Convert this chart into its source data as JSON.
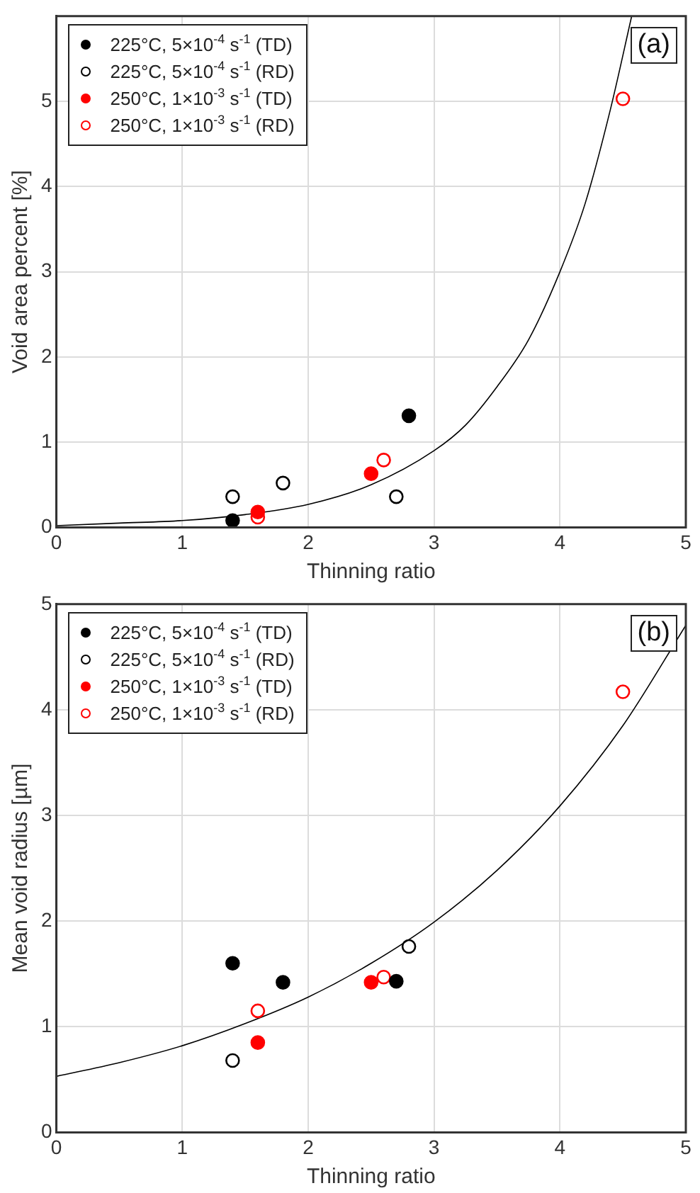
{
  "chart_data": [
    {
      "type": "scatter",
      "xlabel": "Thinning ratio",
      "ylabel": "Void area percent [%]",
      "annotations": [
        "(a)"
      ],
      "xlim": [
        0,
        5
      ],
      "xticks": [
        0,
        1,
        2,
        3,
        4,
        5
      ],
      "ylim": [
        0,
        6
      ],
      "yticks": [
        0,
        1,
        2,
        3,
        4,
        5
      ],
      "grid": true,
      "legend": "top left",
      "marker": "circle",
      "series": [
        {
          "name": "225°C, 5×10$^{-4}$ s$^{-1}$ (TD)",
          "color": "#000000",
          "x": [
            1.4,
            2.8
          ],
          "values": [
            0.08,
            1.31
          ]
        },
        {
          "name": "225°C, 5×10$^{-4}$ s$^{-1}$ (RD)",
          "color": "#000000",
          "x": [
            1.4,
            1.8,
            2.7
          ],
          "values": [
            0.36,
            0.52,
            0.36
          ]
        },
        {
          "name": "250°C, 1×10$^{-3}$ s$^{-1}$ (TD)",
          "color": "#ff0000",
          "x": [
            1.6,
            2.5
          ],
          "values": [
            0.18,
            0.63
          ]
        },
        {
          "name": "250°C, 1×10$^{-3}$ s$^{-1}$ (RD)",
          "color": "#ff0000",
          "x": [
            1.6,
            2.6,
            4.5
          ],
          "values": [
            0.12,
            0.79,
            5.03
          ]
        },
        {
          "type": "line",
          "color": "#000000",
          "marker": "none",
          "x": [
            0,
            0.5,
            1,
            1.5,
            2,
            2.5,
            3,
            3.25,
            3.5,
            3.75,
            4,
            4.2,
            4.4,
            4.57
          ],
          "values": [
            0.02,
            0.05,
            0.08,
            0.15,
            0.27,
            0.5,
            0.9,
            1.2,
            1.65,
            2.2,
            3.0,
            3.8,
            4.9,
            6.0
          ]
        }
      ]
    },
    {
      "type": "scatter",
      "xlabel": "Thinning ratio",
      "ylabel": "Mean void radius [µm]",
      "annotations": [
        "(b)"
      ],
      "xlim": [
        0,
        5
      ],
      "xticks": [
        0,
        1,
        2,
        3,
        4,
        5
      ],
      "ylim": [
        0,
        5
      ],
      "yticks": [
        0,
        1,
        2,
        3,
        4,
        5
      ],
      "grid": true,
      "legend": "top left",
      "marker": "circle",
      "series": [
        {
          "name": "225°C, 5×10$^{-4}$ s$^{-1}$ (TD)",
          "color": "#000000",
          "x": [
            1.4,
            1.8,
            2.7
          ],
          "values": [
            1.6,
            1.42,
            1.43
          ]
        },
        {
          "name": "225°C, 5×10$^{-4}$ s$^{-1}$ (RD)",
          "color": "#000000",
          "x": [
            1.4,
            2.8
          ],
          "values": [
            0.68,
            1.76
          ]
        },
        {
          "name": "250°C, 1×10$^{-3}$ s$^{-1}$ (TD)",
          "color": "#ff0000",
          "x": [
            1.6,
            2.5
          ],
          "values": [
            0.85,
            1.42
          ]
        },
        {
          "name": "250°C, 1×10$^{-3}$ s$^{-1}$ (RD)",
          "color": "#ff0000",
          "x": [
            1.6,
            2.6,
            4.5
          ],
          "values": [
            1.15,
            1.47,
            4.17
          ]
        },
        {
          "type": "line",
          "color": "#000000",
          "marker": "none",
          "x": [
            0,
            0.5,
            1,
            1.5,
            2,
            2.5,
            3,
            3.5,
            4,
            4.5,
            5
          ],
          "values": [
            0.53,
            0.66,
            0.82,
            1.03,
            1.28,
            1.6,
            1.99,
            2.48,
            3.09,
            3.85,
            4.8
          ]
        }
      ]
    }
  ]
}
